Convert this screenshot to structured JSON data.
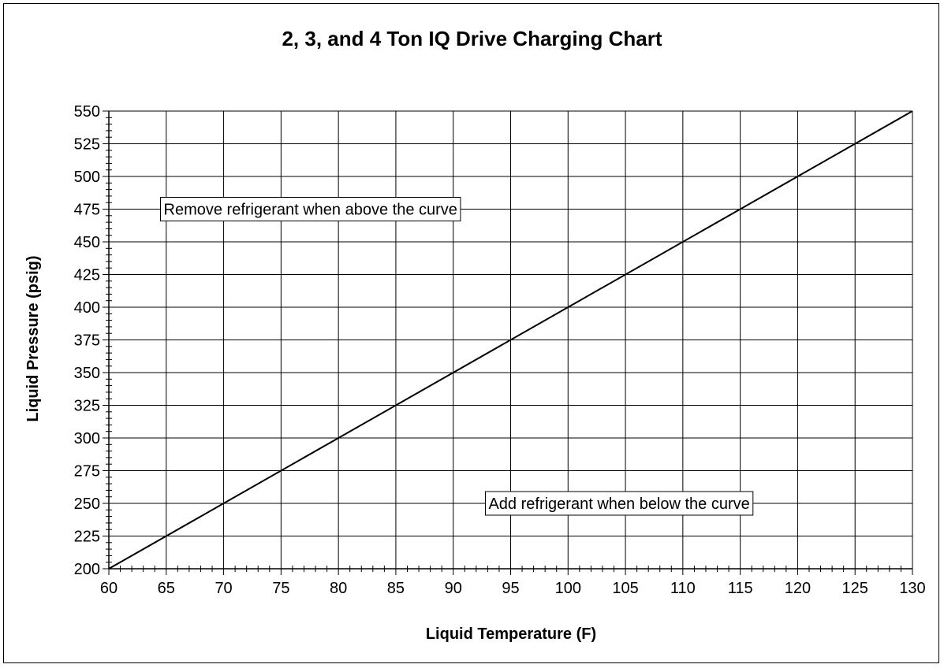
{
  "chart_data": {
    "type": "line",
    "title": "2, 3, and 4 Ton IQ Drive Charging Chart",
    "xlabel": "Liquid Temperature (F)",
    "ylabel": "Liquid Pressure (psig)",
    "xlim": [
      60,
      130
    ],
    "ylim": [
      200,
      550
    ],
    "x_ticks": [
      60,
      65,
      70,
      75,
      80,
      85,
      90,
      95,
      100,
      105,
      110,
      115,
      120,
      125,
      130
    ],
    "y_ticks": [
      200,
      225,
      250,
      275,
      300,
      325,
      350,
      375,
      400,
      425,
      450,
      475,
      500,
      525,
      550
    ],
    "x_minor_step": 1,
    "y_minor_step": 5,
    "grid": true,
    "legend": "none",
    "line_color": "#000000",
    "series": [
      {
        "x": [
          60,
          130
        ],
        "y": [
          200,
          550
        ]
      }
    ],
    "annotations": [
      {
        "text": "Remove refrigerant when above the curve",
        "x": 64.5,
        "y": 475
      },
      {
        "text": "Add refrigerant when below the curve",
        "x": 92.8,
        "y": 250
      }
    ]
  }
}
